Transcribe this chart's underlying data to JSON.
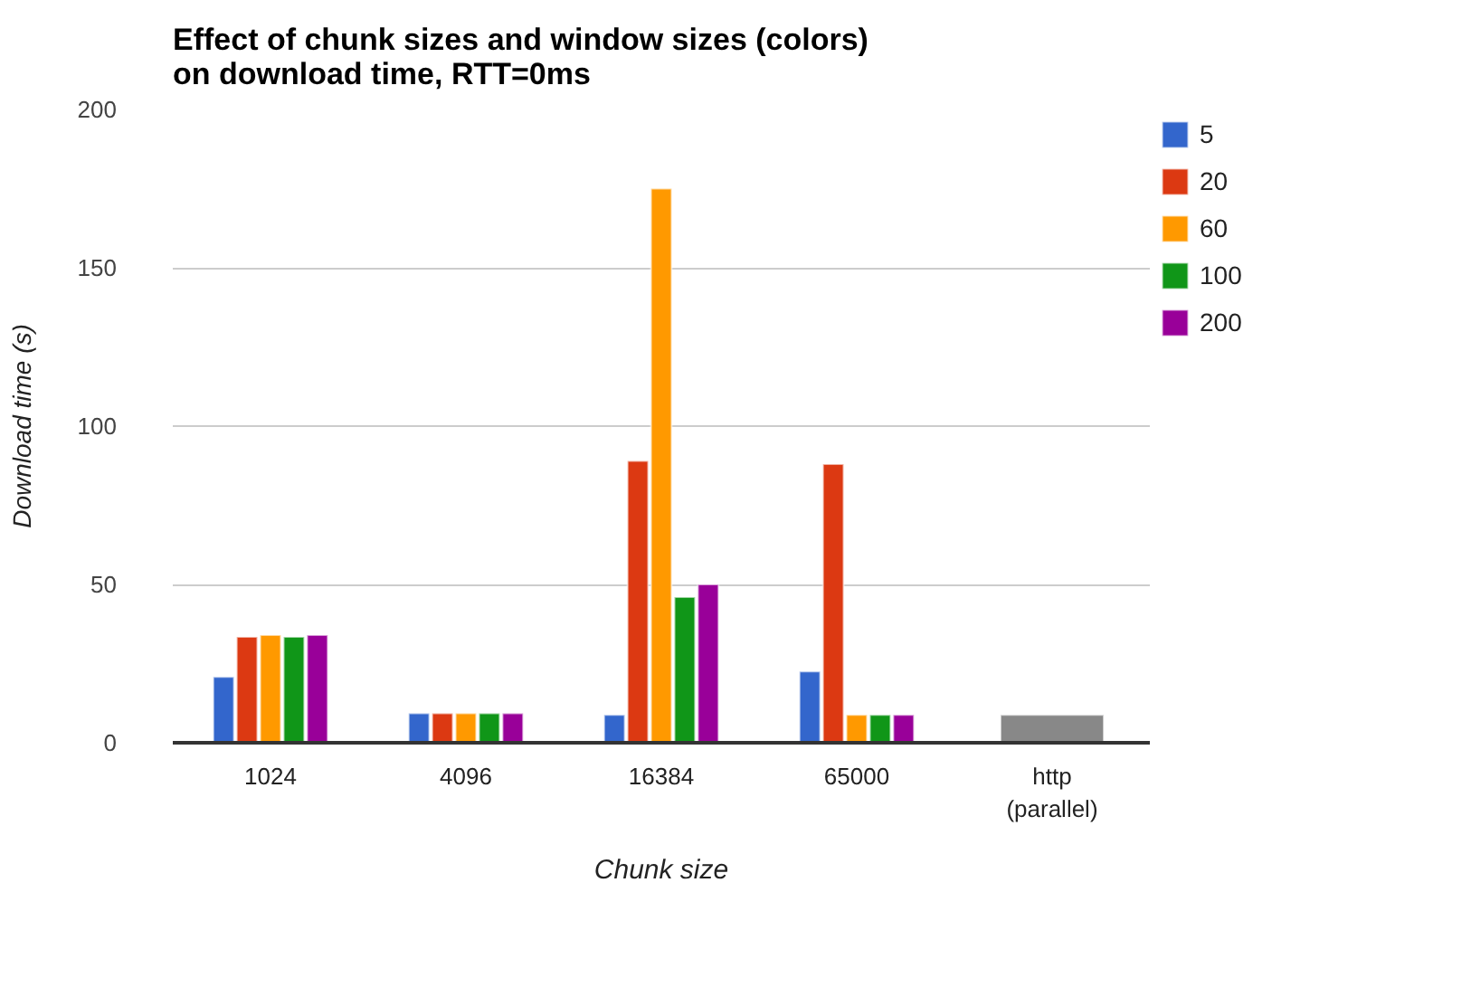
{
  "chart_data": {
    "type": "bar",
    "title": "Effect of chunk sizes and window sizes (colors)\non download time, RTT=0ms",
    "xlabel": "Chunk size",
    "ylabel": "Download time (s)",
    "categories": [
      "1024",
      "4096",
      "16384",
      "65000",
      "http\n(parallel)"
    ],
    "series": [
      {
        "name": "5",
        "color": "#3366cc",
        "values": [
          20.8,
          9.3,
          8.8,
          22.5,
          null
        ]
      },
      {
        "name": "20",
        "color": "#dc3912",
        "values": [
          33.4,
          9.3,
          89,
          88,
          null
        ]
      },
      {
        "name": "60",
        "color": "#ff9900",
        "values": [
          34,
          9.3,
          175,
          8.8,
          null
        ]
      },
      {
        "name": "100",
        "color": "#109618",
        "values": [
          33.4,
          9.3,
          46,
          8.8,
          null
        ]
      },
      {
        "name": "200",
        "color": "#990099",
        "values": [
          34,
          9.3,
          50,
          8.8,
          null
        ]
      },
      {
        "color": "#888888",
        "values": [
          null,
          null,
          null,
          null,
          8.8
        ]
      }
    ],
    "ylim": [
      0,
      200
    ],
    "yticks": [
      0,
      50,
      100,
      150,
      200
    ],
    "grid": "y",
    "legend": "right"
  }
}
